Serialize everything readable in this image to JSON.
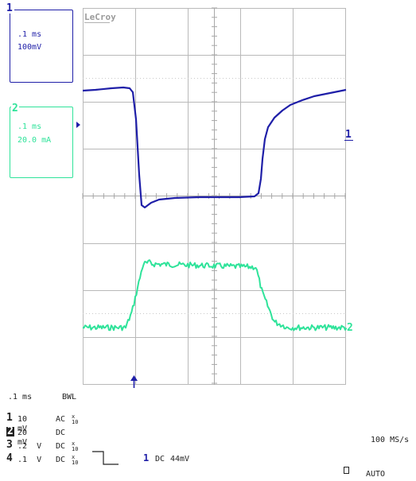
{
  "brand": "LeCroy",
  "colors": {
    "ch1": "#1f1fa8",
    "ch2": "#2fe39a",
    "grid": "#b9b9b9",
    "grid_dot": "#bdbdbd",
    "text": "#222222"
  },
  "channels": [
    {
      "num": "1",
      "timebase": ".1 ms",
      "scale": "100mV",
      "color": "#1f1fa8"
    },
    {
      "num": "2",
      "timebase": ".1 ms",
      "scale": "20.0 mA",
      "color": "#2fe39a"
    }
  ],
  "markers": {
    "ch1_right": "1",
    "ch2_right": "2",
    "trigger_arrow": "↑"
  },
  "bottom": {
    "timebase": ".1 ms",
    "bwl": "BWL",
    "channel_settings": [
      {
        "num": "1",
        "volts": "10 mV",
        "coupling": "AC",
        "atten": "x\n10"
      },
      {
        "num": "2",
        "volts": "20 mV",
        "coupling": "DC",
        "atten": ""
      },
      {
        "num": "3",
        "volts": ".2  V",
        "coupling": "DC",
        "atten": "x\n10"
      },
      {
        "num": "4",
        "volts": ".1  V",
        "coupling": "DC",
        "atten": "x\n10"
      }
    ],
    "trigger_source": "1",
    "trigger_coupling": "DC",
    "trigger_level": "44mV",
    "sample_rate": "100 MS/s",
    "trigger_mode": "AUTO"
  }
}
